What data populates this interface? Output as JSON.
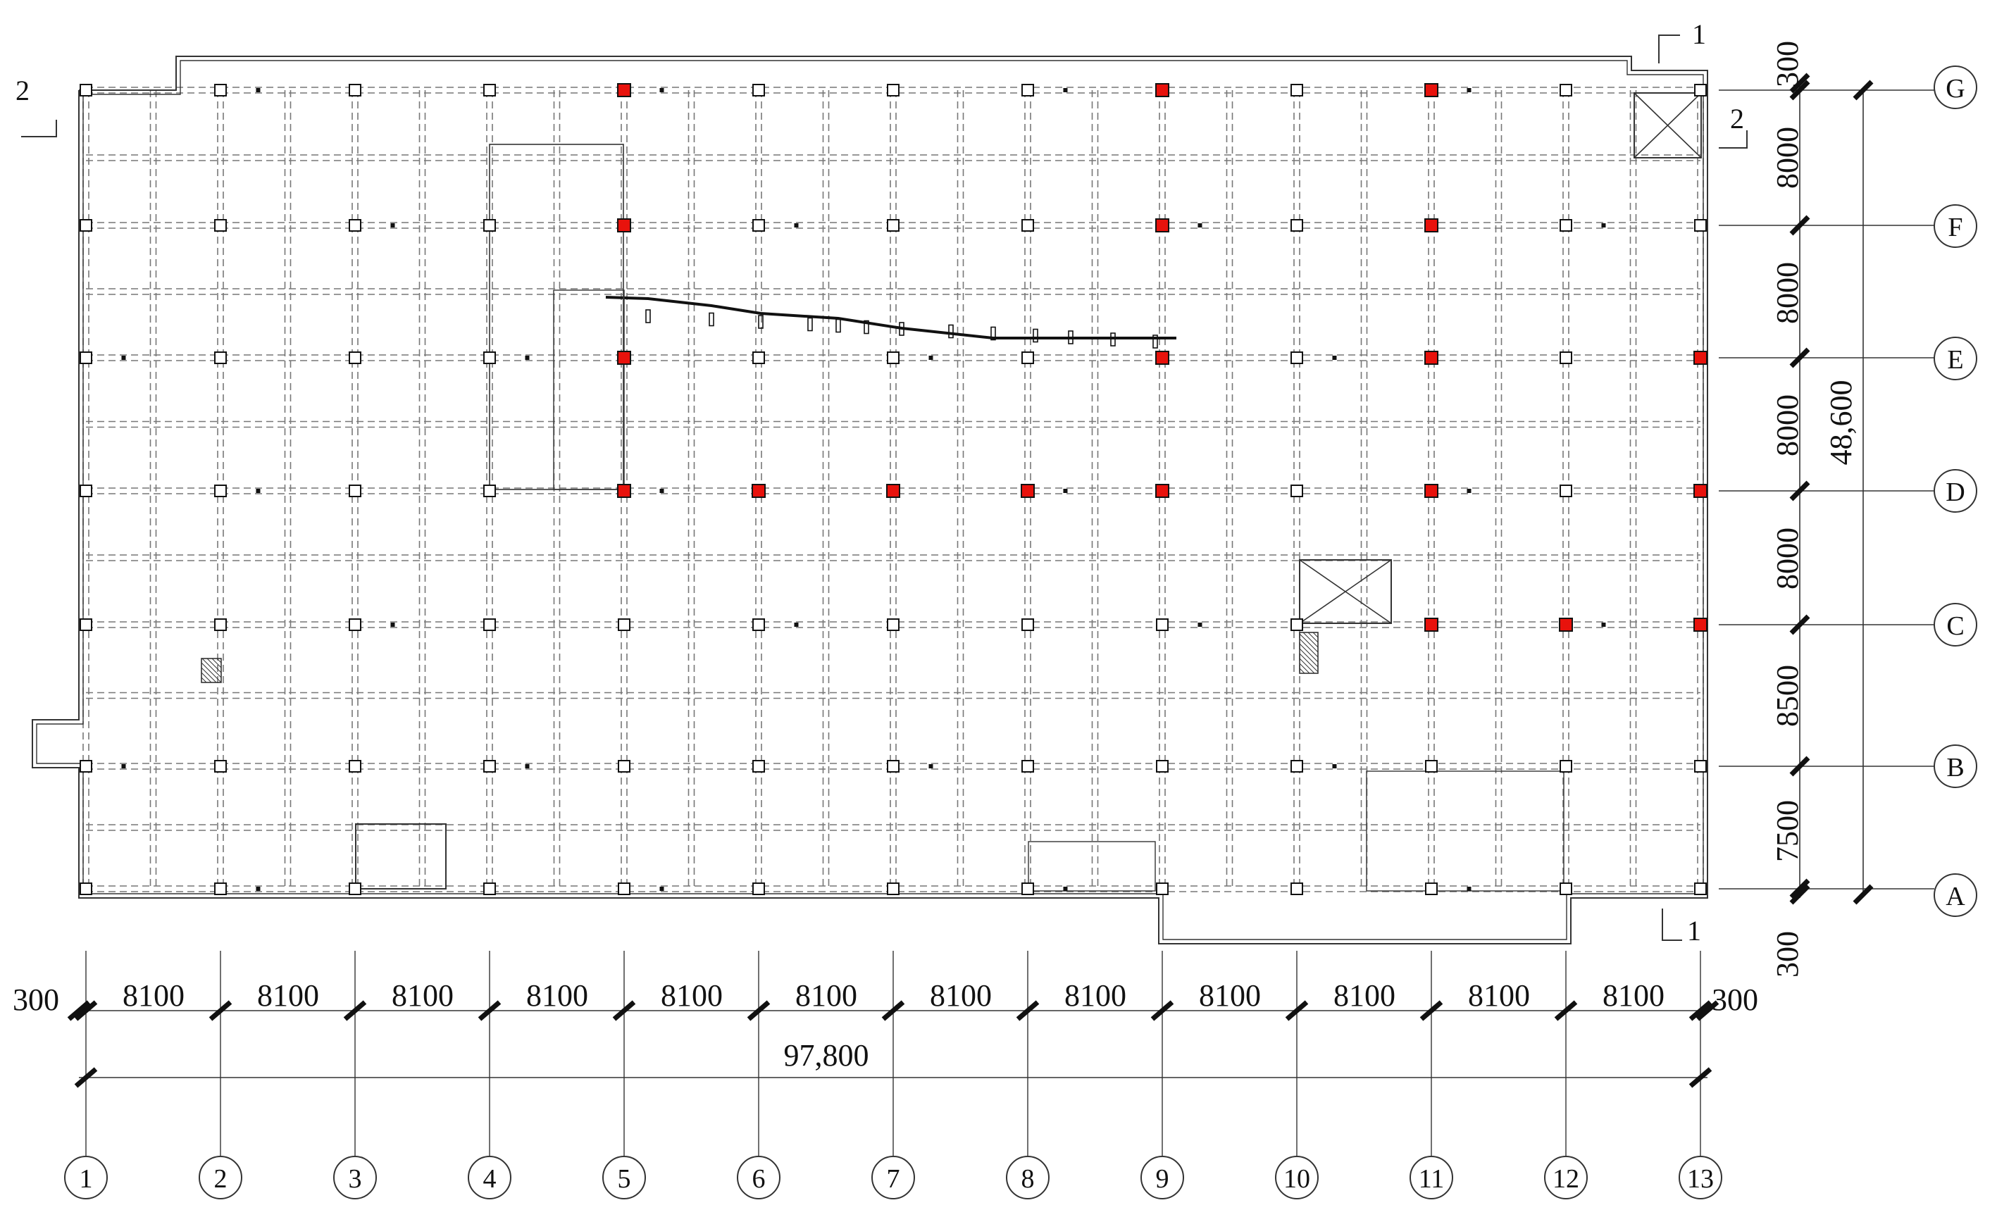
{
  "colors": {
    "line": "#333333",
    "beam": "#777777",
    "highlight": "#e8120c",
    "background": "#ffffff"
  },
  "grid": {
    "columns": [
      "1",
      "2",
      "3",
      "4",
      "5",
      "6",
      "7",
      "8",
      "9",
      "10",
      "11",
      "12",
      "13"
    ],
    "rows": [
      "A",
      "B",
      "C",
      "D",
      "E",
      "F",
      "G"
    ]
  },
  "dimensions": {
    "horizontal_edge_left": "300",
    "horizontal_edge_right": "300",
    "horizontal_spans": [
      "8100",
      "8100",
      "8100",
      "8100",
      "8100",
      "8100",
      "8100",
      "8100",
      "8100",
      "8100",
      "8100",
      "8100"
    ],
    "horizontal_total": "97,800",
    "vertical_edge_top": "300",
    "vertical_edge_bottom": "300",
    "vertical_spans_top_to_bottom": [
      "8000",
      "8000",
      "8000",
      "8000",
      "8500",
      "7500"
    ],
    "vertical_total": "48,600"
  },
  "sections": {
    "cut1_top": "1",
    "cut1_bottom": "1",
    "cut2_left": "2",
    "cut2_right": "2"
  },
  "highlighted_columns": [
    [
      "5",
      "G"
    ],
    [
      "9",
      "G"
    ],
    [
      "11",
      "G"
    ],
    [
      "5",
      "F"
    ],
    [
      "9",
      "F"
    ],
    [
      "11",
      "F"
    ],
    [
      "5",
      "E"
    ],
    [
      "9",
      "E"
    ],
    [
      "11",
      "E"
    ],
    [
      "13",
      "E"
    ],
    [
      "5",
      "D"
    ],
    [
      "6",
      "D"
    ],
    [
      "7",
      "D"
    ],
    [
      "8",
      "D"
    ],
    [
      "9",
      "D"
    ],
    [
      "11",
      "D"
    ],
    [
      "13",
      "D"
    ],
    [
      "11",
      "C"
    ],
    [
      "12",
      "C"
    ],
    [
      "13",
      "C"
    ]
  ]
}
